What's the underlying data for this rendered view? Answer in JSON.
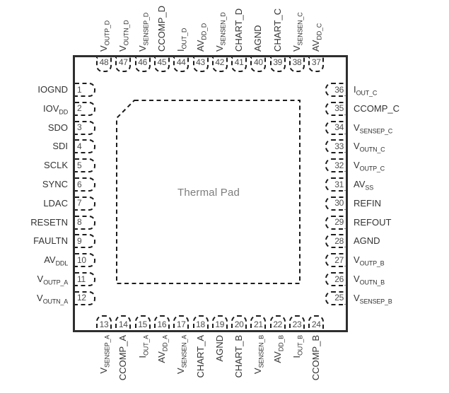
{
  "diagram": {
    "thermal_pad_label": "Thermal Pad",
    "pins": {
      "top": [
        {
          "num": "48",
          "base": "V",
          "sub": "OUTP_D"
        },
        {
          "num": "47",
          "base": "V",
          "sub": "OUTN_D"
        },
        {
          "num": "46",
          "base": "V",
          "sub": "SENSEP_D"
        },
        {
          "num": "45",
          "base": "CCOMP_D",
          "sub": ""
        },
        {
          "num": "44",
          "base": "I",
          "sub": "OUT_D"
        },
        {
          "num": "43",
          "base": "AV",
          "sub": "DD_D"
        },
        {
          "num": "42",
          "base": "V",
          "sub": "SENSEN_D"
        },
        {
          "num": "41",
          "base": "CHART_D",
          "sub": ""
        },
        {
          "num": "40",
          "base": "AGND",
          "sub": ""
        },
        {
          "num": "39",
          "base": "CHART_C",
          "sub": ""
        },
        {
          "num": "38",
          "base": "V",
          "sub": "SENSEN_C"
        },
        {
          "num": "37",
          "base": "AV",
          "sub": "DD_C"
        }
      ],
      "left": [
        {
          "num": "1",
          "base": "IOGND",
          "sub": ""
        },
        {
          "num": "2",
          "base": "IOV",
          "sub": "DD"
        },
        {
          "num": "3",
          "base": "SDO",
          "sub": ""
        },
        {
          "num": "4",
          "base": "SDI",
          "sub": ""
        },
        {
          "num": "5",
          "base": "SCLK",
          "sub": ""
        },
        {
          "num": "6",
          "base": "SYNC",
          "sub": ""
        },
        {
          "num": "7",
          "base": "LDAC",
          "sub": ""
        },
        {
          "num": "8",
          "base": "RESETN",
          "sub": ""
        },
        {
          "num": "9",
          "base": "FAULTN",
          "sub": ""
        },
        {
          "num": "10",
          "base": "AV",
          "sub": "DDL"
        },
        {
          "num": "11",
          "base": "V",
          "sub": "OUTP_A"
        },
        {
          "num": "12",
          "base": "V",
          "sub": "OUTN_A"
        }
      ],
      "right": [
        {
          "num": "36",
          "base": "I",
          "sub": "OUT_C"
        },
        {
          "num": "35",
          "base": "CCOMP_C",
          "sub": ""
        },
        {
          "num": "34",
          "base": "V",
          "sub": "SENSEP_C"
        },
        {
          "num": "33",
          "base": "V",
          "sub": "OUTN_C"
        },
        {
          "num": "32",
          "base": "V",
          "sub": "OUTP_C"
        },
        {
          "num": "31",
          "base": "AV",
          "sub": "SS"
        },
        {
          "num": "30",
          "base": "REFIN",
          "sub": ""
        },
        {
          "num": "29",
          "base": "REFOUT",
          "sub": ""
        },
        {
          "num": "28",
          "base": "AGND",
          "sub": ""
        },
        {
          "num": "27",
          "base": "V",
          "sub": "OUTP_B"
        },
        {
          "num": "26",
          "base": "V",
          "sub": "OUTN_B"
        },
        {
          "num": "25",
          "base": "V",
          "sub": "SENSEP_B"
        }
      ],
      "bottom": [
        {
          "num": "13",
          "base": "V",
          "sub": "SENSEP_A"
        },
        {
          "num": "14",
          "base": "CCOMP_A",
          "sub": ""
        },
        {
          "num": "15",
          "base": "I",
          "sub": "OUT_A"
        },
        {
          "num": "16",
          "base": "AV",
          "sub": "DD_A"
        },
        {
          "num": "17",
          "base": "V",
          "sub": "SENSEN_A"
        },
        {
          "num": "18",
          "base": "CHART_A",
          "sub": ""
        },
        {
          "num": "19",
          "base": "AGND",
          "sub": ""
        },
        {
          "num": "20",
          "base": "CHART_B",
          "sub": ""
        },
        {
          "num": "21",
          "base": "V",
          "sub": "SENSEN_B"
        },
        {
          "num": "22",
          "base": "AV",
          "sub": "DD_B"
        },
        {
          "num": "23",
          "base": "I",
          "sub": "OUT_B"
        },
        {
          "num": "24",
          "base": "CCOMP_B",
          "sub": ""
        }
      ]
    }
  }
}
